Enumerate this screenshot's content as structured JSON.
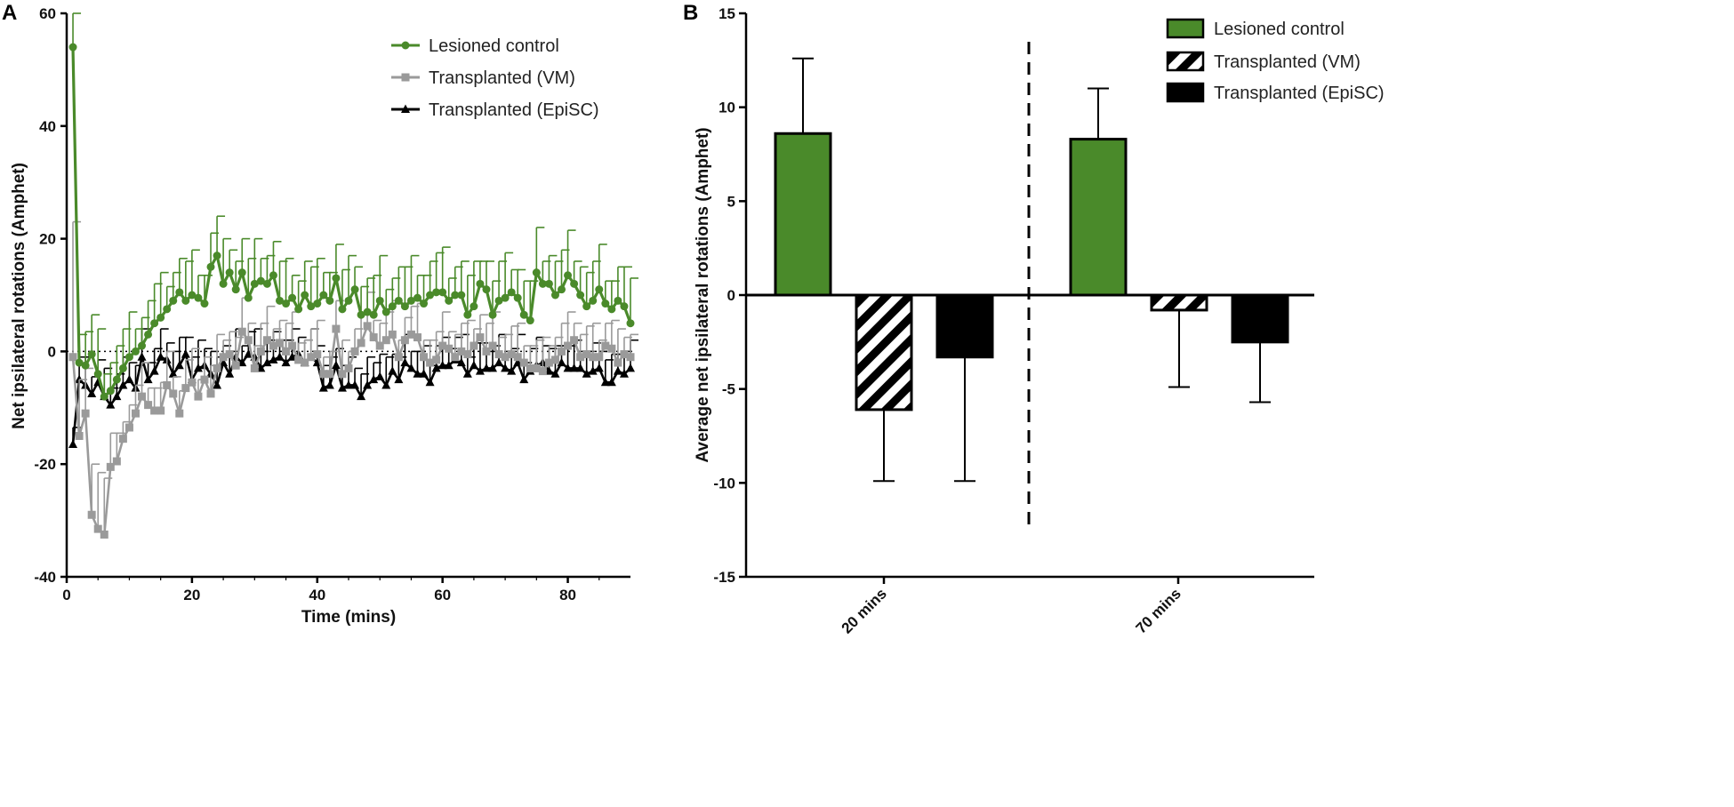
{
  "colors": {
    "lesioned": "#4a8a2a",
    "vm": "#9a9a9a",
    "episc": "#000000",
    "axis": "#000000"
  },
  "chart_data": [
    {
      "panel": "A",
      "type": "line",
      "xlabel": "Time (mins)",
      "ylabel": "Net ipsilateral rotations (Amphet)",
      "xlim": [
        0,
        90
      ],
      "ylim": [
        -40,
        60
      ],
      "xticks": [
        0,
        20,
        40,
        60,
        80
      ],
      "yticks": [
        -40,
        -20,
        0,
        20,
        40,
        60
      ],
      "reference_line": 0,
      "legend": [
        "Lesioned control",
        "Transplanted (VM)",
        "Transplanted (EpiSC)"
      ],
      "series": [
        {
          "name": "Lesioned control",
          "marker": "circle",
          "color": "#4a8a2a",
          "x": [
            1,
            2,
            3,
            4,
            5,
            6,
            7,
            8,
            9,
            10,
            11,
            12,
            13,
            14,
            15,
            16,
            17,
            18,
            19,
            20,
            21,
            22,
            23,
            24,
            25,
            26,
            27,
            28,
            29,
            30,
            31,
            32,
            33,
            34,
            35,
            36,
            37,
            38,
            39,
            40,
            41,
            42,
            43,
            44,
            45,
            46,
            47,
            48,
            49,
            50,
            51,
            52,
            53,
            54,
            55,
            56,
            57,
            58,
            59,
            60,
            61,
            62,
            63,
            64,
            65,
            66,
            67,
            68,
            69,
            70,
            71,
            72,
            73,
            74,
            75,
            76,
            77,
            78,
            79,
            80,
            81,
            82,
            83,
            84,
            85,
            86,
            87,
            88,
            89,
            90
          ],
          "y": [
            54,
            -2,
            -2.5,
            -0.5,
            -4,
            -8,
            -7,
            -5,
            -3,
            -1,
            0,
            1,
            3,
            5,
            6,
            7.5,
            9,
            10.5,
            9,
            10,
            9.5,
            8.5,
            15,
            17,
            12,
            14,
            11,
            14,
            9.5,
            12,
            12.5,
            12,
            13.5,
            9,
            8.5,
            9.5,
            7.5,
            10,
            8,
            8.5,
            10,
            9,
            13,
            7.5,
            9,
            11,
            6.5,
            7,
            6.5,
            9,
            7,
            8,
            9,
            8,
            9,
            9.5,
            8.5,
            10,
            10.5,
            10.5,
            9,
            10,
            10,
            6.5,
            8,
            12,
            11,
            6.5,
            9,
            9.5,
            10.5,
            9.5,
            6.5,
            5.5,
            14,
            12,
            12,
            10,
            11,
            13.5,
            12,
            10,
            8,
            9,
            11,
            8.5,
            7.5,
            9,
            8,
            5
          ]
        },
        {
          "name": "Transplanted (VM)",
          "marker": "square",
          "color": "#9a9a9a",
          "x": [
            1,
            2,
            3,
            4,
            5,
            6,
            7,
            8,
            9,
            10,
            11,
            12,
            13,
            14,
            15,
            16,
            17,
            18,
            19,
            20,
            21,
            22,
            23,
            24,
            25,
            26,
            27,
            28,
            29,
            30,
            31,
            32,
            33,
            34,
            35,
            36,
            37,
            38,
            39,
            40,
            41,
            42,
            43,
            44,
            45,
            46,
            47,
            48,
            49,
            50,
            51,
            52,
            53,
            54,
            55,
            56,
            57,
            58,
            59,
            60,
            61,
            62,
            63,
            64,
            65,
            66,
            67,
            68,
            69,
            70,
            71,
            72,
            73,
            74,
            75,
            76,
            77,
            78,
            79,
            80,
            81,
            82,
            83,
            84,
            85,
            86,
            87,
            88,
            89,
            90
          ],
          "y": [
            -1,
            -15,
            -11,
            -29,
            -31.5,
            -32.5,
            -20.5,
            -19.5,
            -15.5,
            -13.5,
            -11,
            -8,
            -9.5,
            -10.5,
            -10.5,
            -6,
            -7.5,
            -11,
            -6.5,
            -5.5,
            -8,
            -5,
            -7.5,
            -3,
            -1,
            -0.5,
            -2.5,
            3.5,
            2,
            -3,
            0,
            2,
            1,
            1.5,
            0,
            1,
            -1.5,
            -2,
            -1,
            -0.5,
            -4,
            -4,
            4,
            -4,
            -3,
            0,
            1.5,
            4.5,
            2.5,
            1,
            2,
            3,
            -1,
            2,
            3,
            2.5,
            -1,
            -2,
            -1.5,
            1,
            0.5,
            -1,
            0,
            -0.5,
            1,
            2.5,
            0,
            1,
            -0.5,
            -1,
            -0.5,
            -1,
            -2,
            -3,
            -3,
            -3.5,
            -2,
            -1.5,
            0,
            1,
            2,
            -1,
            -0.5,
            -1,
            -1,
            1,
            0.5,
            -2,
            -0.5,
            -1
          ]
        },
        {
          "name": "Transplanted (EpiSC)",
          "marker": "triangle",
          "color": "#000000",
          "x": [
            1,
            2,
            3,
            4,
            5,
            6,
            7,
            8,
            9,
            10,
            11,
            12,
            13,
            14,
            15,
            16,
            17,
            18,
            19,
            20,
            21,
            22,
            23,
            24,
            25,
            26,
            27,
            28,
            29,
            30,
            31,
            32,
            33,
            34,
            35,
            36,
            37,
            38,
            39,
            40,
            41,
            42,
            43,
            44,
            45,
            46,
            47,
            48,
            49,
            50,
            51,
            52,
            53,
            54,
            55,
            56,
            57,
            58,
            59,
            60,
            61,
            62,
            63,
            64,
            65,
            66,
            67,
            68,
            69,
            70,
            71,
            72,
            73,
            74,
            75,
            76,
            77,
            78,
            79,
            80,
            81,
            82,
            83,
            84,
            85,
            86,
            87,
            88,
            89,
            90
          ],
          "y": [
            -16.5,
            -5,
            -6,
            -7.5,
            -5.5,
            -8,
            -9.5,
            -8,
            -6,
            -5,
            -6.5,
            -1,
            -5,
            -3.5,
            -1,
            -1.5,
            -4,
            -2.5,
            -0.5,
            -5,
            -3,
            -2.5,
            -4,
            -6,
            -2,
            -4,
            -1,
            -2,
            -0.5,
            -1,
            -3,
            -2,
            -1.5,
            -1,
            -2,
            -1,
            -0.5,
            -2,
            -1,
            -2,
            -6.5,
            -6,
            -2.5,
            -6.5,
            -6,
            -6,
            -8,
            -6,
            -5,
            -4.5,
            -6,
            -3.5,
            -5,
            -2,
            -3,
            -4,
            -4,
            -5.5,
            -3,
            -2.5,
            -2.5,
            -1.5,
            -2,
            -4,
            -2.5,
            -3.5,
            -3,
            -3,
            -2,
            -3,
            -3.5,
            -2,
            -5,
            -3.5,
            -2.5,
            -2,
            -3.5,
            -4,
            -2,
            -3,
            -3,
            -3,
            -4,
            -3.5,
            -3,
            -5.5,
            -5.5,
            -3.5,
            -4,
            -3
          ]
        }
      ]
    },
    {
      "panel": "B",
      "type": "bar",
      "xlabel": "",
      "ylabel": "Average net ipsilateral rotations (Amphet)",
      "ylim": [
        -15,
        15
      ],
      "yticks": [
        -15,
        -10,
        -5,
        0,
        5,
        10,
        15
      ],
      "categories": [
        "20 mins",
        "70 mins"
      ],
      "legend": [
        "Lesioned control",
        "Transplanted (VM)",
        "Transplanted (EpiSC)"
      ],
      "series": [
        {
          "name": "Lesioned control",
          "fill": "green",
          "values": [
            8.6,
            8.3
          ],
          "error": [
            4.0,
            2.7
          ]
        },
        {
          "name": "Transplanted (VM)",
          "fill": "hatched",
          "values": [
            -6.1,
            -0.8
          ],
          "error": [
            3.8,
            4.1
          ]
        },
        {
          "name": "Transplanted (EpiSC)",
          "fill": "black",
          "values": [
            -3.3,
            -2.5
          ],
          "error": [
            6.6,
            3.2
          ]
        }
      ]
    }
  ]
}
